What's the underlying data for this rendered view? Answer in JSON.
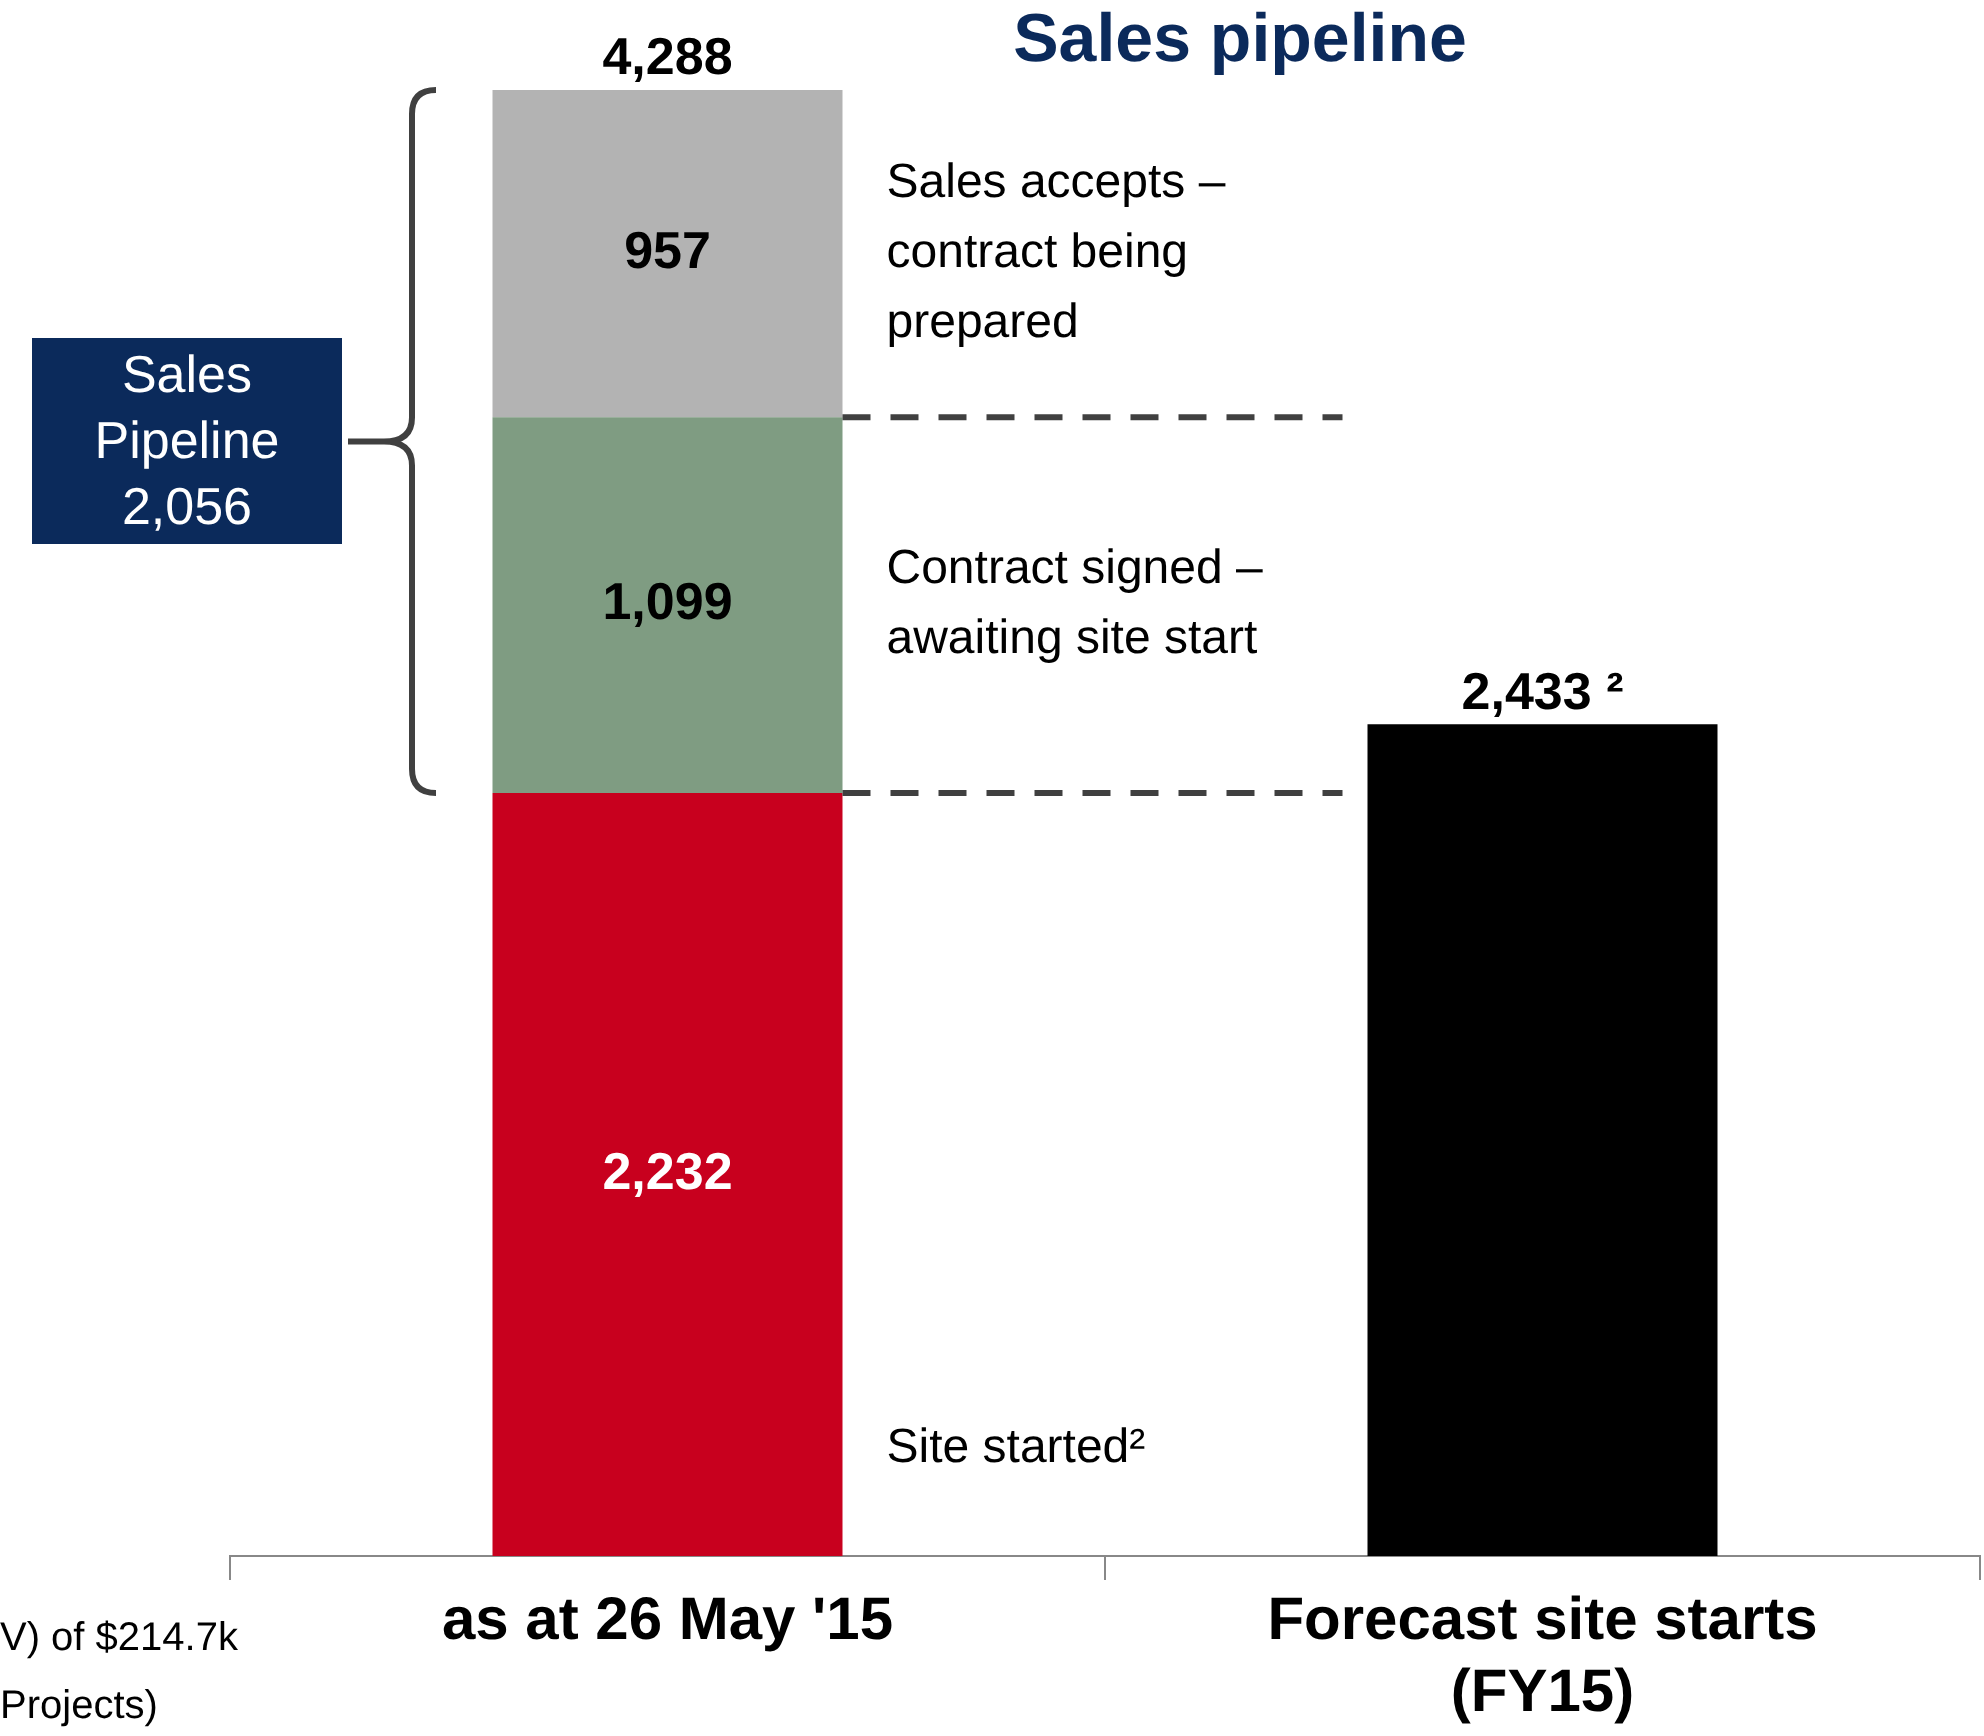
{
  "chart_data": {
    "type": "bar",
    "title": "Sales pipeline",
    "stacked": true,
    "categories": [
      "as at 26 May '15",
      "Forecast site starts (FY15)"
    ],
    "series": [
      {
        "name": "Site started²",
        "color": "#c8001e",
        "values": [
          2232,
          null
        ],
        "value_labels": [
          "2,232",
          null
        ]
      },
      {
        "name": "Contract signed – awaiting site start",
        "color": "#7f9c82",
        "values": [
          1099,
          null
        ],
        "value_labels": [
          "1,099",
          null
        ]
      },
      {
        "name": "Sales accepts – contract being prepared",
        "color": "#b3b3b3",
        "values": [
          957,
          null
        ],
        "value_labels": [
          "957",
          null
        ]
      },
      {
        "color": "#000000",
        "values": [
          null,
          2433
        ]
      }
    ],
    "totals": [
      "4,288",
      "2,433 ²"
    ],
    "ylim": [
      0,
      4288
    ],
    "tick_labels": "x",
    "grid": false,
    "legend": false,
    "ref_lines": [
      {
        "axis": "y",
        "value": 2232,
        "color": "#404040",
        "line_style": "dashed"
      },
      {
        "axis": "y",
        "value": 3331,
        "color": "#404040",
        "line_style": "dashed"
      }
    ],
    "annotations": [
      "Sales Pipeline 2,056",
      "V) of $214.7k",
      "Projects)"
    ]
  }
}
